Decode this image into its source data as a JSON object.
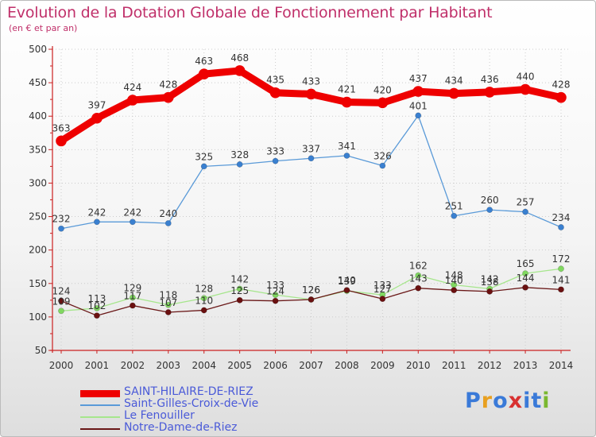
{
  "title": "Evolution de la Dotation Globale de Fonctionnement par Habitant",
  "subtitle": "(en € et par an)",
  "logo": {
    "letters": [
      "P",
      "r",
      "o",
      "x",
      "i",
      "t",
      "i"
    ],
    "colors": [
      "#3a7ad8",
      "#e8a020",
      "#3a7ad8",
      "#d83030",
      "#3a7ad8",
      "#3a7ad8",
      "#7ab830"
    ]
  },
  "chart_data": {
    "type": "line",
    "title": "Evolution de la Dotation Globale de Fonctionnement par Habitant",
    "ylabel": "(en € et par an)",
    "categories": [
      "2000",
      "2001",
      "2002",
      "2003",
      "2004",
      "2005",
      "2006",
      "2007",
      "2008",
      "2009",
      "2010",
      "2011",
      "2012",
      "2013",
      "2014"
    ],
    "ylim": [
      50,
      500
    ],
    "yticks": [
      50,
      100,
      150,
      200,
      250,
      300,
      350,
      400,
      450,
      500
    ],
    "series": [
      {
        "name": "SAINT-HILAIRE-DE-RIEZ",
        "color": "#ee0000",
        "values": [
          363,
          397,
          424,
          428,
          463,
          468,
          435,
          433,
          421,
          420,
          437,
          434,
          436,
          440,
          428
        ]
      },
      {
        "name": "Saint-Gilles-Croix-de-Vie",
        "color": "#5a9ad8",
        "values": [
          232,
          242,
          242,
          240,
          325,
          328,
          333,
          337,
          341,
          326,
          401,
          251,
          260,
          257,
          234
        ]
      },
      {
        "name": "Le Fenouiller",
        "color": "#90e070",
        "values": [
          109,
          113,
          129,
          118,
          128,
          142,
          133,
          126,
          139,
          133,
          162,
          148,
          142,
          165,
          172
        ]
      },
      {
        "name": "Notre-Dame-de-Riez",
        "color": "#6a1818",
        "values": [
          124,
          102,
          117,
          107,
          110,
          125,
          124,
          126,
          140,
          127,
          143,
          140,
          138,
          144,
          141
        ]
      }
    ]
  }
}
